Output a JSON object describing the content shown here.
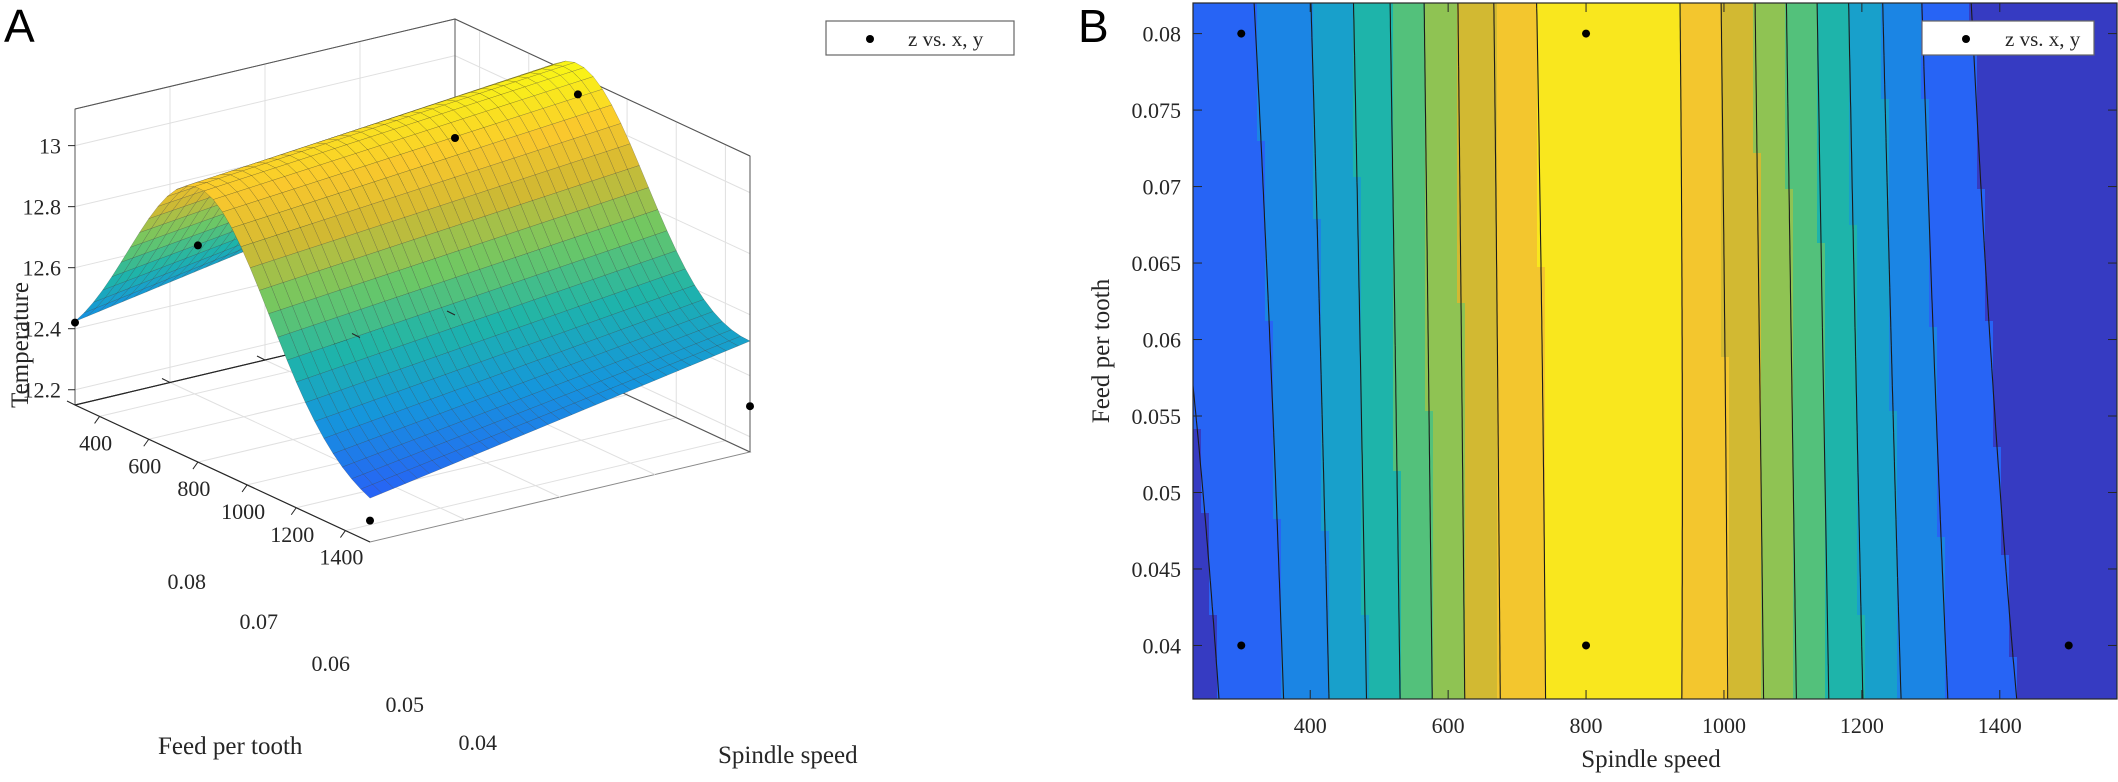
{
  "panels": {
    "a": "A",
    "b": "B"
  },
  "chart_data": [
    {
      "type": "surface",
      "xlabel": "Spindle speed",
      "ylabel": "Feed per tooth",
      "zlabel": "Temperature",
      "x_ticks": [
        "400",
        "600",
        "800",
        "1000",
        "1200",
        "1400"
      ],
      "y_ticks": [
        "0.04",
        "0.05",
        "0.06",
        "0.07",
        "0.08"
      ],
      "z_ticks": [
        "12.2",
        "12.4",
        "12.6",
        "12.8",
        "13"
      ],
      "xlim": [
        300,
        1500
      ],
      "ylim": [
        0.04,
        0.08
      ],
      "zlim": [
        12.15,
        13.12
      ],
      "grid": true,
      "legend": {
        "label": "z vs. x, y",
        "position": "top-right"
      },
      "points": [
        {
          "x": 300,
          "y": 0.08,
          "z": 12.73
        },
        {
          "x": 800,
          "y": 0.08,
          "z": 13.06
        },
        {
          "x": 300,
          "y": 0.04,
          "z": 12.42
        },
        {
          "x": 800,
          "y": 0.04,
          "z": 12.86
        },
        {
          "x": 1500,
          "y": 0.04,
          "z": 12.22
        },
        {
          "x": 1500,
          "y": 0.08,
          "z": 12.3
        }
      ]
    },
    {
      "type": "contour",
      "xlabel": "Spindle speed",
      "ylabel": "Feed per tooth",
      "x_ticks": [
        "400",
        "600",
        "800",
        "1000",
        "1200",
        "1400"
      ],
      "y_ticks": [
        "0.04",
        "0.045",
        "0.05",
        "0.055",
        "0.06",
        "0.065",
        "0.07",
        "0.075",
        "0.08"
      ],
      "xlim": [
        230,
        1570
      ],
      "ylim": [
        0.0365,
        0.082
      ],
      "legend": {
        "label": "z vs. x, y",
        "position": "top-right"
      },
      "points": [
        {
          "x": 300,
          "y": 0.08
        },
        {
          "x": 800,
          "y": 0.08
        },
        {
          "x": 300,
          "y": 0.04
        },
        {
          "x": 800,
          "y": 0.04
        },
        {
          "x": 1500,
          "y": 0.04
        }
      ]
    }
  ]
}
